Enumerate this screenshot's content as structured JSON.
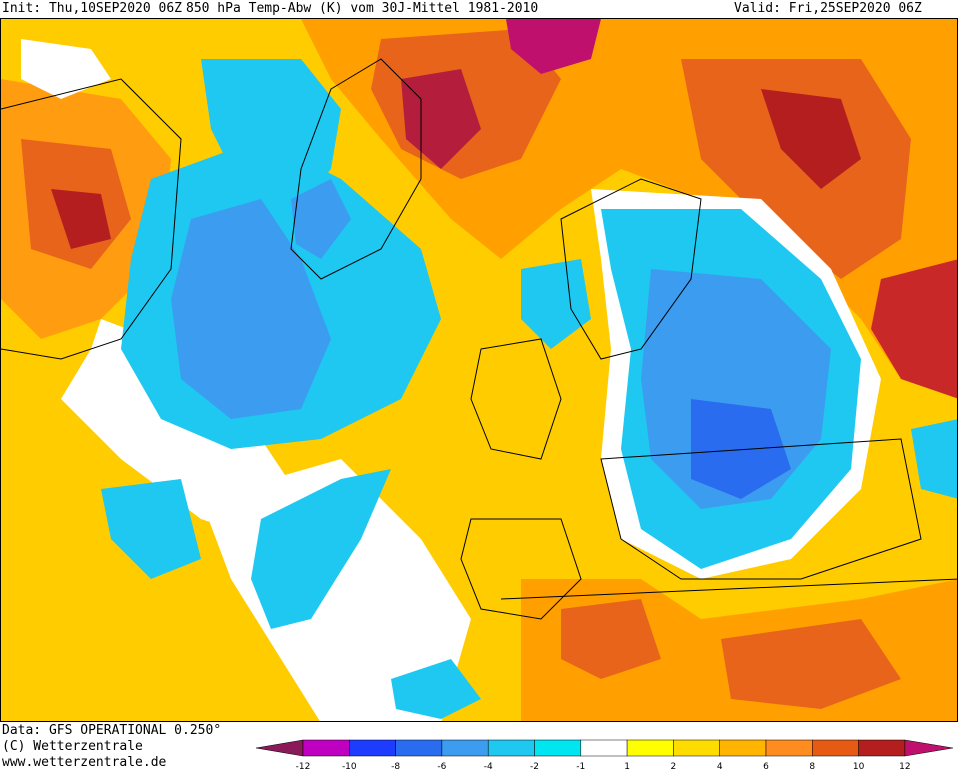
{
  "header": {
    "init": "Init: Thu,10SEP2020 06Z",
    "field": "850 hPa Temp-Abw (K) vom 30J-Mittel 1981-2010",
    "valid": "Valid: Fri,25SEP2020 06Z"
  },
  "credits": {
    "data_source": "Data: GFS OPERATIONAL 0.250°",
    "copyright": "(C) Wetterzentrale",
    "website": "www.wetterzentrale.de"
  },
  "legend": {
    "ticks": [
      "-12",
      "-10",
      "-8",
      "-6",
      "-4",
      "-2",
      "-1",
      "1",
      "2",
      "4",
      "6",
      "8",
      "10",
      "12"
    ],
    "colors": [
      "#c000c0",
      "#1e3cff",
      "#2a6cf0",
      "#3c9cf0",
      "#1ec8f0",
      "#00e6f0",
      "#ffffff",
      "#ffff00",
      "#ffdc00",
      "#ffb400",
      "#ff8c1e",
      "#e65a14",
      "#b41e1e"
    ],
    "end_low": "#8b1a5a",
    "end_high": "#c0106e"
  }
}
